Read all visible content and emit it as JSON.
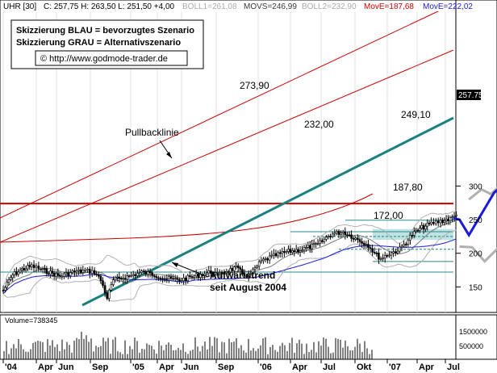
{
  "header": {
    "symbol": "UHR [30]",
    "quote": "C: 257,75 H: 263,50 L: 251,50 +4,00",
    "boll1": "BOLL1=261,08",
    "movs": "MOVS=246,99",
    "boll2": "BOLL2=232,90",
    "move1": "MovE=187,68",
    "move2": "MovE=222,02"
  },
  "legend": {
    "line1": "Skizzierung BLAU = bevorzugtes Szenario",
    "line2": "Skizzierung GRAU = Alternativszenario",
    "url": "© http://www.godmode-trader.de"
  },
  "chart_data": {
    "type": "candlestick",
    "title": "UHR [30]",
    "last_price": 257.75,
    "ylim": [
      112,
      328
    ],
    "y_ticks": [
      150,
      200,
      250,
      300
    ],
    "x_ticks": [
      "'04",
      "Apr",
      "Jun",
      "Sep",
      "'05",
      "Apr",
      "Jun",
      "Sep",
      "'06",
      "Apr",
      "Jul",
      "Okt",
      "'07",
      "Apr",
      "Jul"
    ],
    "price_path": [
      [
        0,
        145
      ],
      [
        0.03,
        168
      ],
      [
        0.06,
        176
      ],
      [
        0.09,
        181
      ],
      [
        0.12,
        176
      ],
      [
        0.15,
        171
      ],
      [
        0.18,
        166
      ],
      [
        0.22,
        172
      ],
      [
        0.26,
        174
      ],
      [
        0.29,
        172
      ],
      [
        0.31,
        160
      ],
      [
        0.33,
        134
      ],
      [
        0.35,
        160
      ],
      [
        0.4,
        166
      ],
      [
        0.44,
        172
      ],
      [
        0.48,
        168
      ],
      [
        0.52,
        162
      ],
      [
        0.56,
        160
      ],
      [
        0.6,
        165
      ],
      [
        0.64,
        170
      ],
      [
        0.66,
        172
      ],
      [
        0.68,
        168
      ],
      [
        0.71,
        174
      ],
      [
        0.74,
        178
      ],
      [
        0.76,
        170
      ],
      [
        0.78,
        166
      ],
      [
        0.82,
        188
      ],
      [
        0.86,
        196
      ],
      [
        0.9,
        202
      ],
      [
        0.95,
        206
      ],
      [
        1.0,
        213
      ],
      [
        1.04,
        228
      ],
      [
        1.08,
        232
      ],
      [
        1.12,
        222
      ],
      [
        1.16,
        212
      ],
      [
        1.18,
        200
      ],
      [
        1.2,
        192
      ],
      [
        1.22,
        198
      ],
      [
        1.26,
        206
      ],
      [
        1.3,
        228
      ],
      [
        1.33,
        238
      ],
      [
        1.36,
        244
      ],
      [
        1.39,
        248
      ],
      [
        1.42,
        251
      ],
      [
        1.44,
        257
      ]
    ],
    "horizontal_levels": [
      {
        "label": "273,90",
        "value": 273.9,
        "color": "#cc0000"
      },
      {
        "label": "249,10",
        "value": 249.1,
        "color": "#2a8a8a"
      },
      {
        "label": "232,00",
        "value": 232.0,
        "color": "#2a8a8a"
      },
      {
        "label": "187,80",
        "value": 187.8,
        "color": "#2a8a8a"
      },
      {
        "label": "172,00",
        "value": 172.0,
        "color": "#2a8a8a"
      }
    ],
    "annotations": [
      {
        "text": "Pullbacklinie"
      },
      {
        "text": "Aufwärtstrend"
      },
      {
        "text": "seit August 2004"
      }
    ],
    "scenarios": {
      "blue": [
        [
          1.43,
          252
        ],
        [
          1.45,
          250
        ],
        [
          1.48,
          227
        ],
        [
          1.56,
          290
        ],
        [
          1.63,
          318
        ]
      ],
      "grey_top": [
        [
          1.48,
          280
        ],
        [
          1.52,
          295
        ],
        [
          1.55,
          288
        ],
        [
          1.6,
          310
        ],
        [
          1.63,
          320
        ]
      ],
      "grey_bottom": [
        [
          1.45,
          210
        ],
        [
          1.49,
          209
        ],
        [
          1.53,
          188
        ],
        [
          1.58,
          211
        ],
        [
          1.63,
          232
        ]
      ]
    },
    "colors": {
      "candle": "#000000",
      "trend": "#1a8080",
      "channel": "#cc0000",
      "blue": "#1a1adb",
      "grey": "#b0b0b0",
      "zone": "#bfe3e3"
    }
  },
  "volume": {
    "label": "Volume=738345",
    "ticks": [
      "1500000",
      "500000"
    ]
  }
}
